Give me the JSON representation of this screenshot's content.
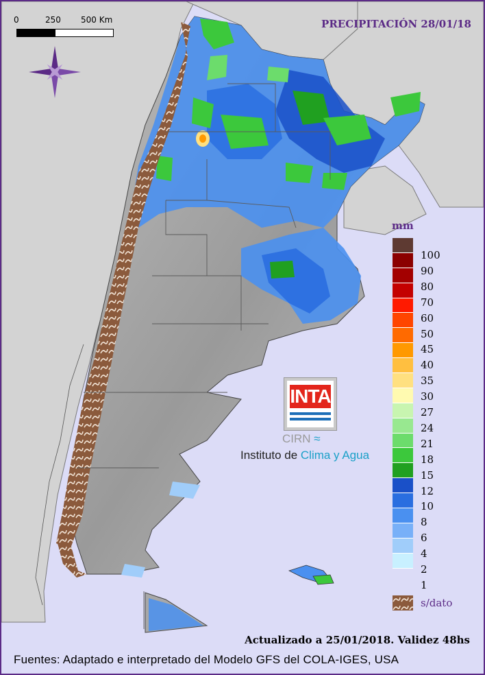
{
  "header": {
    "title": "PRECIPITACIÓN 28/01/18"
  },
  "scale_bar": {
    "labels": [
      "0",
      "250",
      "500 Km"
    ]
  },
  "legend": {
    "unit": "mm",
    "classes": [
      {
        "label": "100",
        "color": "#5e3a32"
      },
      {
        "label": "90",
        "color": "#8b0000"
      },
      {
        "label": "80",
        "color": "#a30000"
      },
      {
        "label": "70",
        "color": "#c40000"
      },
      {
        "label": "60",
        "color": "#ff1a00"
      },
      {
        "label": "50",
        "color": "#ff4500"
      },
      {
        "label": "45",
        "color": "#ff6a00"
      },
      {
        "label": "40",
        "color": "#ff9900"
      },
      {
        "label": "35",
        "color": "#ffbf40"
      },
      {
        "label": "30",
        "color": "#ffe080"
      },
      {
        "label": "27",
        "color": "#fffab0"
      },
      {
        "label": "24",
        "color": "#c8f5b0"
      },
      {
        "label": "21",
        "color": "#98e890"
      },
      {
        "label": "18",
        "color": "#6cdc6c"
      },
      {
        "label": "15",
        "color": "#3cc83c"
      },
      {
        "label": "12",
        "color": "#20a020"
      },
      {
        "label": "10",
        "color": "#1a50c8"
      },
      {
        "label": "8",
        "color": "#2a6ee0"
      },
      {
        "label": "6",
        "color": "#4a90f0"
      },
      {
        "label": "4",
        "color": "#78b0f8"
      },
      {
        "label": "2",
        "color": "#a0cdfa"
      },
      {
        "label": "1",
        "color": "#c8f0ff"
      }
    ],
    "no_data_label": "s/dato",
    "no_data_color": "#8b5a3c"
  },
  "logo": {
    "name": "INTA",
    "subtitle": "CIRN",
    "institute_prefix": "Instituto de ",
    "institute_highlight": "Clima y Agua"
  },
  "footer": {
    "updated": "Actualizado a 25/01/2018. Validez 48hs",
    "sources": "Fuentes: Adaptado e interpretado del Modelo GFS del COLA-IGES, USA"
  },
  "colors": {
    "ocean": "#dcdcf7",
    "neighbor_land": "#d3d3d3",
    "relief": "#a8a8a8",
    "frame": "#5b2a86",
    "accent_title": "#5b2a86"
  },
  "icons": [
    "compass-rose-icon"
  ]
}
